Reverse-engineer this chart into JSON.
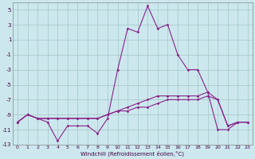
{
  "xlabel": "Windchill (Refroidissement éolien,°C)",
  "xlim": [
    -0.5,
    23.5
  ],
  "ylim": [
    -13,
    6
  ],
  "yticks": [
    5,
    3,
    1,
    -1,
    -3,
    -5,
    -7,
    -9,
    -11,
    -13
  ],
  "xticks": [
    0,
    1,
    2,
    3,
    4,
    5,
    6,
    7,
    8,
    9,
    10,
    11,
    12,
    13,
    14,
    15,
    16,
    17,
    18,
    19,
    20,
    21,
    22,
    23
  ],
  "bg_color": "#cce8ee",
  "grid_color": "#aacccc",
  "line_color": "#882288",
  "line1_x": [
    0,
    1,
    2,
    3,
    4,
    5,
    6,
    7,
    8,
    9,
    10,
    11,
    12,
    13,
    14,
    15,
    16,
    17,
    18,
    19,
    20,
    21,
    22,
    23
  ],
  "line1_y": [
    -10.0,
    -9.0,
    -9.5,
    -9.5,
    -9.5,
    -9.5,
    -9.5,
    -9.5,
    -9.5,
    -9.0,
    -8.5,
    -8.0,
    -7.5,
    -7.0,
    -6.5,
    -6.5,
    -6.5,
    -6.5,
    -6.5,
    -6.0,
    -7.0,
    -10.5,
    -10.0,
    -10.0
  ],
  "line2_x": [
    0,
    1,
    2,
    3,
    4,
    5,
    6,
    7,
    8,
    9,
    10,
    11,
    12,
    13,
    14,
    15,
    16,
    17,
    18,
    19,
    20,
    21,
    22,
    23
  ],
  "line2_y": [
    -10.0,
    -9.0,
    -9.5,
    -9.5,
    -9.5,
    -9.5,
    -9.5,
    -9.5,
    -9.5,
    -9.0,
    -8.5,
    -8.5,
    -8.0,
    -8.0,
    -7.5,
    -7.0,
    -7.0,
    -7.0,
    -7.0,
    -6.5,
    -7.0,
    -10.5,
    -10.0,
    -10.0
  ],
  "line3_x": [
    0,
    1,
    2,
    3,
    4,
    5,
    6,
    7,
    8,
    9,
    10,
    11,
    12,
    13,
    14,
    15,
    16,
    17,
    18,
    19,
    20,
    21,
    22,
    23
  ],
  "line3_y": [
    -10.0,
    -9.0,
    -9.5,
    -10.0,
    -12.5,
    -10.5,
    -10.5,
    -10.5,
    -11.5,
    -9.5,
    -3.0,
    2.5,
    2.0,
    5.5,
    2.5,
    3.0,
    -1.0,
    -3.0,
    -3.0,
    -6.0,
    -11.0,
    -11.0,
    -10.0,
    -10.0
  ]
}
